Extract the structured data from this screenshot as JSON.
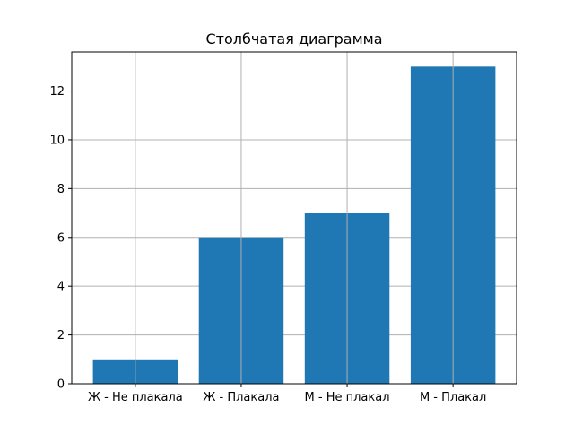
{
  "chart_data": {
    "type": "bar",
    "title": "Столбчатая диаграмма",
    "xlabel": "",
    "ylabel": "",
    "categories": [
      "Ж - Не плакала",
      "Ж - Плакала",
      "М - Не плакал",
      "М - Плакал"
    ],
    "values": [
      1,
      6,
      7,
      13
    ],
    "ylim": [
      0,
      13.6
    ],
    "yticks": [
      0,
      2,
      4,
      6,
      8,
      10,
      12
    ],
    "grid": true,
    "bar_color": "#1f77b4",
    "grid_color": "#b0b0b0"
  }
}
